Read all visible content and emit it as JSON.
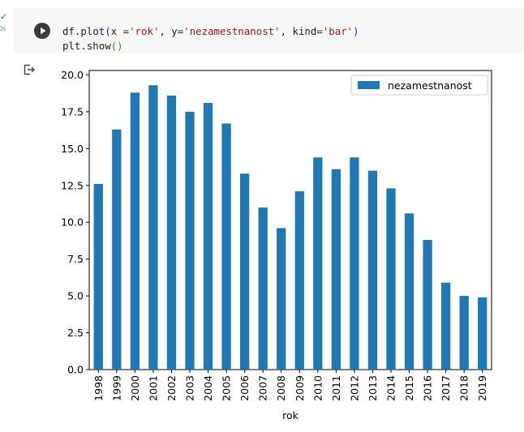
{
  "cell": {
    "exec_check": "✓",
    "exec_time": "0s",
    "code_line1": {
      "p1": "df.plot",
      "p2": "(",
      "p3": "x =",
      "p4": "'rok'",
      "p5": ", y=",
      "p6": "'nezamestnanost'",
      "p7": ", kind=",
      "p8": "'bar'",
      "p9": ")"
    },
    "code_line2": {
      "p1": "plt.show",
      "p2": "()"
    }
  },
  "icons": {
    "run": "play-icon",
    "output": "output-arrow-icon",
    "check": "check-icon"
  },
  "colors": {
    "bar": "#1f77b4",
    "run_button": "#3b3b3b",
    "check": "#1e8e3e"
  },
  "chart_data": {
    "type": "bar",
    "categories": [
      "1998",
      "1999",
      "2000",
      "2001",
      "2002",
      "2003",
      "2004",
      "2005",
      "2006",
      "2007",
      "2008",
      "2009",
      "2010",
      "2011",
      "2012",
      "2013",
      "2014",
      "2015",
      "2016",
      "2017",
      "2018",
      "2019"
    ],
    "series": [
      {
        "name": "nezamestnanost",
        "values": [
          12.6,
          16.3,
          18.8,
          19.3,
          18.6,
          17.5,
          18.1,
          16.7,
          13.3,
          11.0,
          9.6,
          12.1,
          14.4,
          13.6,
          14.4,
          13.5,
          12.3,
          10.6,
          8.8,
          5.9,
          5.0,
          4.9
        ]
      }
    ],
    "xlabel": "rok",
    "ylabel": "",
    "ylim": [
      0,
      20.3
    ],
    "yticks": [
      "0.0",
      "2.5",
      "5.0",
      "7.5",
      "10.0",
      "12.5",
      "15.0",
      "17.5",
      "20.0"
    ],
    "ytick_values": [
      0,
      2.5,
      5,
      7.5,
      10,
      12.5,
      15,
      17.5,
      20
    ],
    "legend_position": "top-right",
    "grid": false
  }
}
